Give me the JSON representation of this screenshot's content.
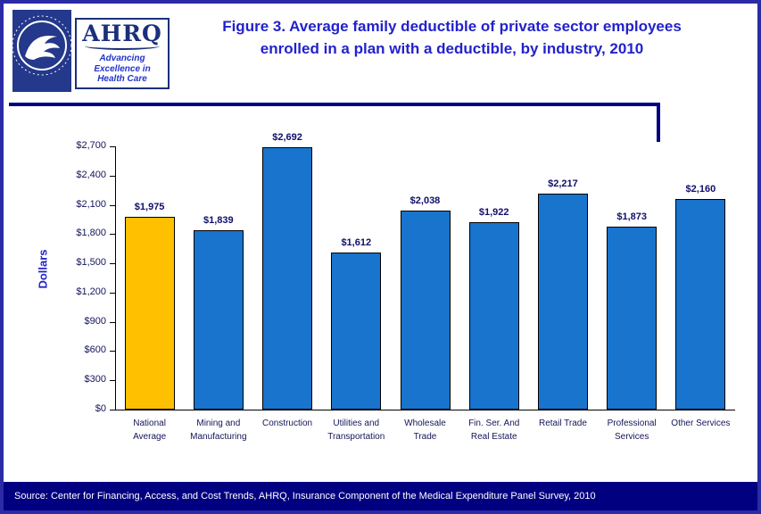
{
  "header": {
    "title_line1": "Figure 3. Average family deductible of private sector employees",
    "title_line2": "enrolled in a plan with a deductible, by industry, 2010",
    "logos": {
      "hhs_icon": "hhs-seal-icon",
      "ahrq_text": "AHRQ",
      "ahrq_tagline_lines": [
        "Advancing",
        "Excellence in",
        "Health Care"
      ]
    }
  },
  "chart_data": {
    "type": "bar",
    "title": "Figure 3. Average family deductible of private sector employees enrolled in a plan with a deductible, by industry, 2010",
    "xlabel": "",
    "ylabel": "Dollars",
    "ylim": [
      0,
      2700
    ],
    "ytick_interval": 300,
    "ytick_labels": [
      "$0",
      "$300",
      "$600",
      "$900",
      "$1,200",
      "$1,500",
      "$1,800",
      "$2,100",
      "$2,400",
      "$2,700"
    ],
    "categories": [
      "National Average",
      "Mining and Manufacturing",
      "Construction",
      "Utilities and Transportation",
      "Wholesale Trade",
      "Fin. Ser. And Real Estate",
      "Retail Trade",
      "Professional Services",
      "Other Services"
    ],
    "category_lines": [
      [
        "National",
        "Average"
      ],
      [
        "Mining and",
        "Manufacturing"
      ],
      [
        "Construction"
      ],
      [
        "Utilities and",
        "Transportation"
      ],
      [
        "Wholesale",
        "Trade"
      ],
      [
        "Fin. Ser. And",
        "Real Estate"
      ],
      [
        "Retail Trade"
      ],
      [
        "Professional",
        "Services"
      ],
      [
        "Other Services"
      ]
    ],
    "values": [
      1975,
      1839,
      2692,
      1612,
      2038,
      1922,
      2217,
      1873,
      2160
    ],
    "value_labels": [
      "$1,975",
      "$1,839",
      "$2,692",
      "$1,612",
      "$2,038",
      "$1,922",
      "$2,217",
      "$1,873",
      "$2,160"
    ],
    "colors": {
      "default_bar": "#1874CD",
      "highlight_bar": "#FFC000",
      "bar_border": "#000000"
    },
    "highlight_index": 0,
    "grid": false,
    "legend": false
  },
  "footer": {
    "source": "Source: Center for Financing, Access, and Cost Trends, AHRQ, Insurance Component of the Medical Expenditure Panel Survey, 2010"
  },
  "colors": {
    "page_border": "#2B2BA6",
    "title_blue": "#2222CC",
    "footer_navy": "#000080",
    "rule_navy": "#00007F"
  }
}
